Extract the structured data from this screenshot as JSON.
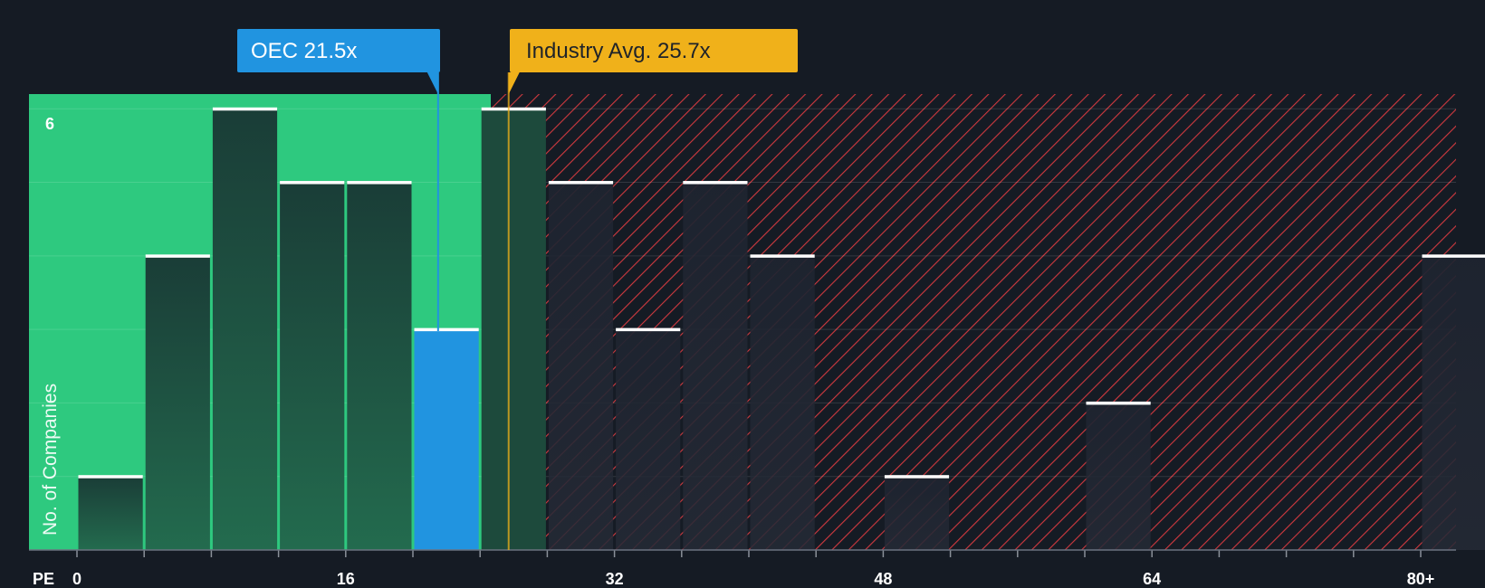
{
  "chart_data": {
    "type": "bar",
    "xlabel": "PE",
    "ylabel": "No. of Companies",
    "x_ticks": [
      "0",
      "16",
      "32",
      "48",
      "64",
      "80+"
    ],
    "y_ticks": [
      "6"
    ],
    "ylim": [
      0,
      6.2
    ],
    "bin_width": 4,
    "bins": [
      {
        "start": 0,
        "value": 1
      },
      {
        "start": 4,
        "value": 4
      },
      {
        "start": 8,
        "value": 6
      },
      {
        "start": 12,
        "value": 5
      },
      {
        "start": 16,
        "value": 5
      },
      {
        "start": 20,
        "value": 3,
        "highlight": true
      },
      {
        "start": 24,
        "value": 6
      },
      {
        "start": 28,
        "value": 5
      },
      {
        "start": 32,
        "value": 3
      },
      {
        "start": 36,
        "value": 5
      },
      {
        "start": 40,
        "value": 4
      },
      {
        "start": 48,
        "value": 1
      },
      {
        "start": 60,
        "value": 2
      },
      {
        "start": 80,
        "value": 4
      }
    ],
    "company_marker": {
      "label": "OEC 21.5x",
      "value": 21.5
    },
    "industry_marker": {
      "label": "Industry Avg. 25.7x",
      "value": 25.7
    },
    "grid": true
  },
  "colors": {
    "background": "#151b24",
    "undervalued_region": "#2ec97f",
    "overvalued_hatch": "#d0393f",
    "bar_fill": "#1e4a3e",
    "highlight_bar": "#2194e0",
    "company_callout": "#2194e0",
    "industry_callout": "#f0b11a",
    "bar_top": "#ffffff"
  }
}
